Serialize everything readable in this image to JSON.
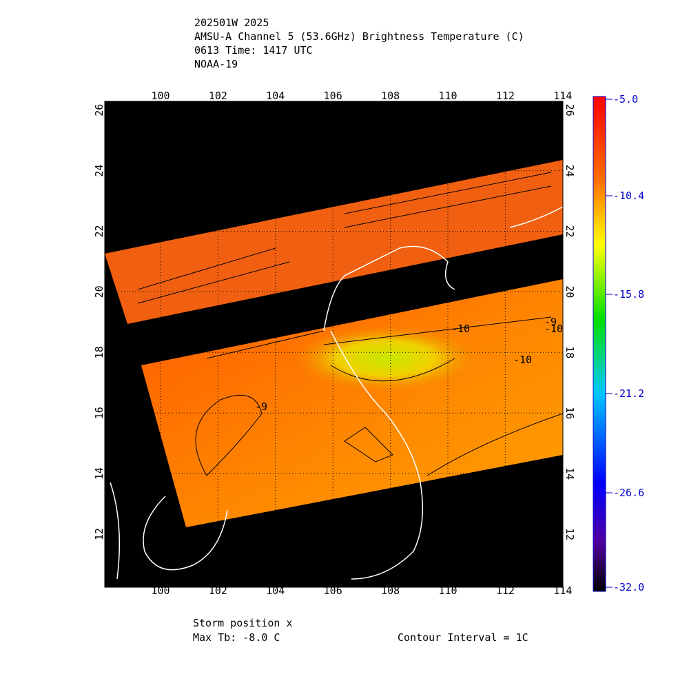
{
  "header": {
    "lines": [
      "202501W 2025",
      "AMSU-A Channel 5 (53.6GHz) Brightness Temperature (C)",
      "0613 Time: 1417 UTC",
      "NOAA-19"
    ]
  },
  "map": {
    "lon_ticks": [
      "100",
      "102",
      "104",
      "106",
      "108",
      "110",
      "112",
      "114"
    ],
    "lat_ticks": [
      "12",
      "14",
      "16",
      "18",
      "20",
      "22",
      "24",
      "26"
    ],
    "contour_labels": [
      "-9",
      "-10",
      "-10",
      "-10",
      "-9"
    ]
  },
  "colorbar": {
    "ticks": [
      "-5.0",
      "-10.4",
      "-15.8",
      "-21.2",
      "-26.6",
      "-32.0"
    ]
  },
  "footer": {
    "storm": "Storm position x",
    "max_tb": "Max Tb:  -8.0    C",
    "interval": "Contour Interval = 1C"
  }
}
